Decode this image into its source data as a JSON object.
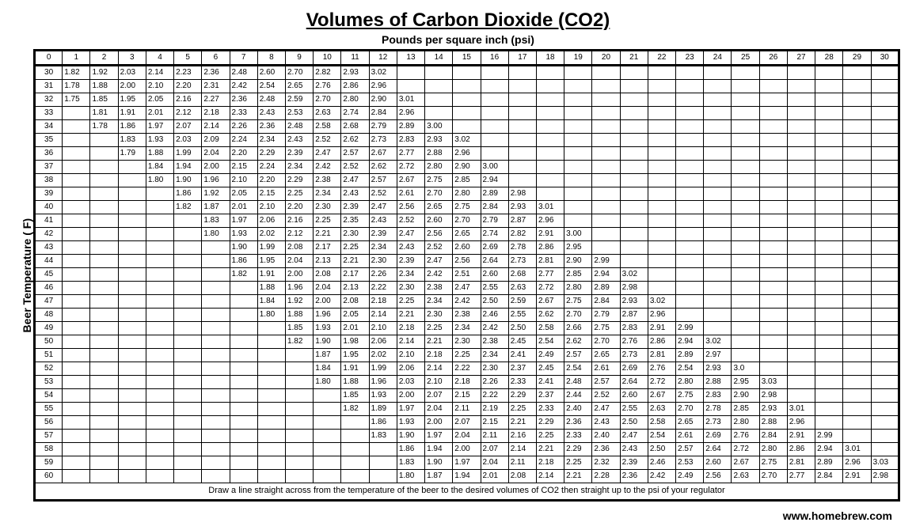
{
  "title": "Volumes of Carbon Dioxide (CO2)",
  "subtitle": "Pounds per square inch (psi)",
  "y_axis_label": "Beer Temperature ( F)",
  "instruction": "Draw a  line straight across from the temperature of the beer to the desired volumes of CO2 then straight up to the psi of your regulator",
  "source": "www.homebrew.com",
  "table": {
    "type": "table",
    "background_color": "#ffffff",
    "grid_color": "#000000",
    "header_fontsize": 10,
    "cell_fontsize": 10,
    "psi_columns": [
      0,
      1,
      2,
      3,
      4,
      5,
      6,
      7,
      8,
      9,
      10,
      11,
      12,
      13,
      14,
      15,
      16,
      17,
      18,
      19,
      20,
      21,
      22,
      23,
      24,
      25,
      26,
      27,
      28,
      29,
      30
    ],
    "temp_rows": [
      30,
      31,
      32,
      33,
      34,
      35,
      36,
      37,
      38,
      39,
      40,
      41,
      42,
      43,
      44,
      45,
      46,
      47,
      48,
      49,
      50,
      51,
      52,
      53,
      54,
      55,
      56,
      57,
      58,
      59,
      60
    ],
    "data": {
      "30": {
        "1": "1.82",
        "2": "1.92",
        "3": "2.03",
        "4": "2.14",
        "5": "2.23",
        "6": "2.36",
        "7": "2.48",
        "8": "2.60",
        "9": "2.70",
        "10": "2.82",
        "11": "2.93",
        "12": "3.02"
      },
      "31": {
        "1": "1.78",
        "2": "1.88",
        "3": "2.00",
        "4": "2.10",
        "5": "2.20",
        "6": "2.31",
        "7": "2.42",
        "8": "2.54",
        "9": "2.65",
        "10": "2.76",
        "11": "2.86",
        "12": "2.96"
      },
      "32": {
        "1": "1.75",
        "2": "1.85",
        "3": "1.95",
        "4": "2.05",
        "5": "2.16",
        "6": "2.27",
        "7": "2.36",
        "8": "2.48",
        "9": "2.59",
        "10": "2.70",
        "11": "2.80",
        "12": "2.90",
        "13": "3.01"
      },
      "33": {
        "2": "1.81",
        "3": "1.91",
        "4": "2.01",
        "5": "2.12",
        "6": "2.18",
        "7": "2.33",
        "8": "2.43",
        "9": "2.53",
        "10": "2.63",
        "11": "2.74",
        "12": "2.84",
        "13": "2.96"
      },
      "34": {
        "2": "1.78",
        "3": "1.86",
        "4": "1.97",
        "5": "2.07",
        "6": "2.14",
        "7": "2.26",
        "8": "2.36",
        "9": "2.48",
        "10": "2.58",
        "11": "2.68",
        "12": "2.79",
        "13": "2.89",
        "14": "3.00"
      },
      "35": {
        "3": "1.83",
        "4": "1.93",
        "5": "2.03",
        "6": "2.09",
        "7": "2.24",
        "8": "2.34",
        "9": "2.43",
        "10": "2.52",
        "11": "2.62",
        "12": "2.73",
        "13": "2.83",
        "14": "2.93",
        "15": "3.02"
      },
      "36": {
        "3": "1.79",
        "4": "1.88",
        "5": "1.99",
        "6": "2.04",
        "7": "2.20",
        "8": "2.29",
        "9": "2.39",
        "10": "2.47",
        "11": "2.57",
        "12": "2.67",
        "13": "2.77",
        "14": "2.88",
        "15": "2.96"
      },
      "37": {
        "4": "1.84",
        "5": "1.94",
        "6": "2.00",
        "7": "2.15",
        "8": "2.24",
        "9": "2.34",
        "10": "2.42",
        "11": "2.52",
        "12": "2.62",
        "13": "2.72",
        "14": "2.80",
        "15": "2.90",
        "16": "3.00"
      },
      "38": {
        "4": "1.80",
        "5": "1.90",
        "6": "1.96",
        "7": "2.10",
        "8": "2.20",
        "9": "2.29",
        "10": "2.38",
        "11": "2.47",
        "12": "2.57",
        "13": "2.67",
        "14": "2.75",
        "15": "2.85",
        "16": "2.94"
      },
      "39": {
        "5": "1.86",
        "6": "1.92",
        "7": "2.05",
        "8": "2.15",
        "9": "2.25",
        "10": "2.34",
        "11": "2.43",
        "12": "2.52",
        "13": "2.61",
        "14": "2.70",
        "15": "2.80",
        "16": "2.89",
        "17": "2.98"
      },
      "40": {
        "5": "1.82",
        "6": "1.87",
        "7": "2.01",
        "8": "2.10",
        "9": "2.20",
        "10": "2.30",
        "11": "2.39",
        "12": "2.47",
        "13": "2.56",
        "14": "2.65",
        "15": "2.75",
        "16": "2.84",
        "17": "2.93",
        "18": "3.01"
      },
      "41": {
        "6": "1.83",
        "7": "1.97",
        "8": "2.06",
        "9": "2.16",
        "10": "2.25",
        "11": "2.35",
        "12": "2.43",
        "13": "2.52",
        "14": "2.60",
        "15": "2.70",
        "16": "2.79",
        "17": "2.87",
        "18": "2.96"
      },
      "42": {
        "6": "1.80",
        "7": "1.93",
        "8": "2.02",
        "9": "2.12",
        "10": "2.21",
        "11": "2.30",
        "12": "2.39",
        "13": "2.47",
        "14": "2.56",
        "15": "2.65",
        "16": "2.74",
        "17": "2.82",
        "18": "2.91",
        "19": "3.00"
      },
      "43": {
        "7": "1.90",
        "8": "1.99",
        "9": "2.08",
        "10": "2.17",
        "11": "2.25",
        "12": "2.34",
        "13": "2.43",
        "14": "2.52",
        "15": "2.60",
        "16": "2.69",
        "17": "2.78",
        "18": "2.86",
        "19": "2.95"
      },
      "44": {
        "7": "1.86",
        "8": "1.95",
        "9": "2.04",
        "10": "2.13",
        "11": "2.21",
        "12": "2.30",
        "13": "2.39",
        "14": "2.47",
        "15": "2.56",
        "16": "2.64",
        "17": "2.73",
        "18": "2.81",
        "19": "2.90",
        "20": "2.99"
      },
      "45": {
        "7": "1.82",
        "8": "1.91",
        "9": "2.00",
        "10": "2.08",
        "11": "2.17",
        "12": "2.26",
        "13": "2.34",
        "14": "2.42",
        "15": "2.51",
        "16": "2.60",
        "17": "2.68",
        "18": "2.77",
        "19": "2.85",
        "20": "2.94",
        "21": "3.02"
      },
      "46": {
        "8": "1.88",
        "9": "1.96",
        "10": "2.04",
        "11": "2.13",
        "12": "2.22",
        "13": "2.30",
        "14": "2.38",
        "15": "2.47",
        "16": "2.55",
        "17": "2.63",
        "18": "2.72",
        "19": "2.80",
        "20": "2.89",
        "21": "2.98"
      },
      "47": {
        "8": "1.84",
        "9": "1.92",
        "10": "2.00",
        "11": "2.08",
        "12": "2.18",
        "13": "2.25",
        "14": "2.34",
        "15": "2.42",
        "16": "2.50",
        "17": "2.59",
        "18": "2.67",
        "19": "2.75",
        "20": "2.84",
        "21": "2.93",
        "22": "3.02"
      },
      "48": {
        "8": "1.80",
        "9": "1.88",
        "10": "1.96",
        "11": "2.05",
        "12": "2.14",
        "13": "2.21",
        "14": "2.30",
        "15": "2.38",
        "16": "2.46",
        "17": "2.55",
        "18": "2.62",
        "19": "2.70",
        "20": "2.79",
        "21": "2.87",
        "22": "2.96"
      },
      "49": {
        "9": "1.85",
        "10": "1.93",
        "11": "2.01",
        "12": "2.10",
        "13": "2.18",
        "14": "2.25",
        "15": "2.34",
        "16": "2.42",
        "17": "2.50",
        "18": "2.58",
        "19": "2.66",
        "20": "2.75",
        "21": "2.83",
        "22": "2.91",
        "23": "2.99"
      },
      "50": {
        "9": "1.82",
        "10": "1.90",
        "11": "1.98",
        "12": "2.06",
        "13": "2.14",
        "14": "2.21",
        "15": "2.30",
        "16": "2.38",
        "17": "2.45",
        "18": "2.54",
        "19": "2.62",
        "20": "2.70",
        "21": "2.76",
        "22": "2.86",
        "23": "2.94",
        "24": "3.02"
      },
      "51": {
        "10": "1.87",
        "11": "1.95",
        "12": "2.02",
        "13": "2.10",
        "14": "2.18",
        "15": "2.25",
        "16": "2.34",
        "17": "2.41",
        "18": "2.49",
        "19": "2.57",
        "20": "2.65",
        "21": "2.73",
        "22": "2.81",
        "23": "2.89",
        "24": "2.97"
      },
      "52": {
        "10": "1.84",
        "11": "1.91",
        "12": "1.99",
        "13": "2.06",
        "14": "2.14",
        "15": "2.22",
        "16": "2.30",
        "17": "2.37",
        "18": "2.45",
        "19": "2.54",
        "20": "2.61",
        "21": "2.69",
        "22": "2.76",
        "23": "2.54",
        "24": "2.93",
        "25": "3.0"
      },
      "53": {
        "10": "1.80",
        "11": "1.88",
        "12": "1.96",
        "13": "2.03",
        "14": "2.10",
        "15": "2.18",
        "16": "2.26",
        "17": "2.33",
        "18": "2.41",
        "19": "2.48",
        "20": "2.57",
        "21": "2.64",
        "22": "2.72",
        "23": "2.80",
        "24": "2.88",
        "25": "2.95",
        "26": "3.03"
      },
      "54": {
        "11": "1.85",
        "12": "1.93",
        "13": "2.00",
        "14": "2.07",
        "15": "2.15",
        "16": "2.22",
        "17": "2.29",
        "18": "2.37",
        "19": "2.44",
        "20": "2.52",
        "21": "2.60",
        "22": "2.67",
        "23": "2.75",
        "24": "2.83",
        "25": "2.90",
        "26": "2.98"
      },
      "55": {
        "11": "1.82",
        "12": "1.89",
        "13": "1.97",
        "14": "2.04",
        "15": "2.11",
        "16": "2.19",
        "17": "2.25",
        "18": "2.33",
        "19": "2.40",
        "20": "2.47",
        "21": "2.55",
        "22": "2.63",
        "23": "2.70",
        "24": "2.78",
        "25": "2.85",
        "26": "2.93",
        "27": "3.01"
      },
      "56": {
        "12": "1.86",
        "13": "1.93",
        "14": "2.00",
        "15": "2.07",
        "16": "2.15",
        "17": "2.21",
        "18": "2.29",
        "19": "2.36",
        "20": "2.43",
        "21": "2.50",
        "22": "2.58",
        "23": "2.65",
        "24": "2.73",
        "25": "2.80",
        "26": "2.88",
        "27": "2.96"
      },
      "57": {
        "12": "1.83",
        "13": "1.90",
        "14": "1.97",
        "15": "2.04",
        "16": "2.11",
        "17": "2.16",
        "18": "2.25",
        "19": "2.33",
        "20": "2.40",
        "21": "2.47",
        "22": "2.54",
        "23": "2.61",
        "24": "2.69",
        "25": "2.76",
        "26": "2.84",
        "27": "2.91",
        "28": "2.99"
      },
      "58": {
        "13": "1.86",
        "14": "1.94",
        "15": "2.00",
        "16": "2.07",
        "17": "2.14",
        "18": "2.21",
        "19": "2.29",
        "20": "2.36",
        "21": "2.43",
        "22": "2.50",
        "23": "2.57",
        "24": "2.64",
        "25": "2.72",
        "26": "2.80",
        "27": "2.86",
        "28": "2.94",
        "29": "3.01"
      },
      "59": {
        "13": "1.83",
        "14": "1.90",
        "15": "1.97",
        "16": "2.04",
        "17": "2.11",
        "18": "2.18",
        "19": "2.25",
        "20": "2.32",
        "21": "2.39",
        "22": "2.46",
        "23": "2.53",
        "24": "2.60",
        "25": "2.67",
        "26": "2.75",
        "27": "2.81",
        "28": "2.89",
        "29": "2.96",
        "30": "3.03"
      },
      "60": {
        "13": "1.80",
        "14": "1.87",
        "15": "1.94",
        "16": "2.01",
        "17": "2.08",
        "18": "2.14",
        "19": "2.21",
        "20": "2.28",
        "21": "2.36",
        "22": "2.42",
        "23": "2.49",
        "24": "2.56",
        "25": "2.63",
        "26": "2.70",
        "27": "2.77",
        "28": "2.84",
        "29": "2.91",
        "30": "2.98"
      }
    }
  }
}
